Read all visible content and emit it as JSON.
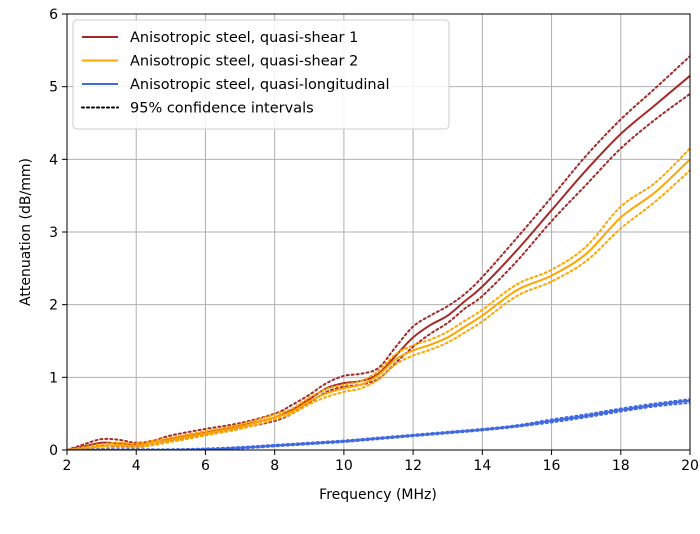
{
  "chart_data": {
    "type": "line",
    "xlabel": "Frequency (MHz)",
    "ylabel": "Attenuation (dB/mm)",
    "xlim": [
      2,
      20
    ],
    "ylim": [
      0,
      6
    ],
    "xticks": [
      "2",
      "4",
      "6",
      "8",
      "10",
      "12",
      "14",
      "16",
      "18",
      "20"
    ],
    "yticks": [
      "0",
      "1",
      "2",
      "3",
      "4",
      "5",
      "6"
    ],
    "grid": true,
    "legend_position": "top-left",
    "legend": [
      {
        "label": "Anisotropic steel, quasi-shear 1",
        "color": "#a52a2a",
        "style": "solid"
      },
      {
        "label": "Anisotropic steel, quasi-shear 2",
        "color": "#ffa500",
        "style": "solid"
      },
      {
        "label": "Anisotropic steel, quasi-longitudinal",
        "color": "#4169e1",
        "style": "solid"
      },
      {
        "label": "95% confidence intervals",
        "color": "#000000",
        "style": "dotted"
      }
    ],
    "series": [
      {
        "name": "Anisotropic steel, quasi-shear 1",
        "color": "#a52a2a",
        "x": [
          2,
          2.5,
          3,
          3.5,
          4,
          4.5,
          5,
          6,
          7,
          8,
          8.5,
          9,
          9.5,
          10,
          10.5,
          11,
          11.5,
          12,
          12.5,
          13,
          13.5,
          14,
          15,
          16,
          17,
          18,
          19,
          20
        ],
        "y": [
          0,
          0.05,
          0.1,
          0.09,
          0.07,
          0.1,
          0.15,
          0.24,
          0.33,
          0.45,
          0.55,
          0.7,
          0.85,
          0.92,
          0.95,
          1.05,
          1.3,
          1.55,
          1.72,
          1.85,
          2.05,
          2.25,
          2.75,
          3.3,
          3.85,
          4.35,
          4.75,
          5.15
        ],
        "ci_lower": [
          0,
          0.02,
          0.06,
          0.05,
          0.04,
          0.07,
          0.12,
          0.21,
          0.3,
          0.4,
          0.5,
          0.65,
          0.8,
          0.87,
          0.9,
          0.98,
          1.2,
          1.42,
          1.6,
          1.75,
          1.95,
          2.12,
          2.6,
          3.15,
          3.65,
          4.15,
          4.55,
          4.9
        ],
        "ci_upper": [
          0,
          0.08,
          0.15,
          0.14,
          0.1,
          0.13,
          0.2,
          0.29,
          0.37,
          0.5,
          0.62,
          0.76,
          0.92,
          1.02,
          1.05,
          1.13,
          1.42,
          1.7,
          1.85,
          1.98,
          2.15,
          2.38,
          2.92,
          3.48,
          4.05,
          4.55,
          4.98,
          5.42
        ]
      },
      {
        "name": "Anisotropic steel, quasi-shear 2",
        "color": "#ffa500",
        "x": [
          2,
          2.5,
          3,
          3.5,
          4,
          4.5,
          5,
          6,
          7,
          8,
          8.5,
          9,
          9.5,
          10,
          10.5,
          11,
          11.5,
          12,
          12.5,
          13,
          13.5,
          14,
          15,
          16,
          17,
          18,
          19,
          20
        ],
        "y": [
          0,
          0.02,
          0.05,
          0.07,
          0.06,
          0.1,
          0.14,
          0.23,
          0.32,
          0.45,
          0.53,
          0.67,
          0.78,
          0.85,
          0.9,
          1.03,
          1.25,
          1.37,
          1.45,
          1.55,
          1.7,
          1.85,
          2.2,
          2.4,
          2.7,
          3.2,
          3.55,
          4.0
        ],
        "ci_lower": [
          0,
          0,
          0.02,
          0.04,
          0.03,
          0.07,
          0.11,
          0.2,
          0.29,
          0.42,
          0.5,
          0.63,
          0.73,
          0.8,
          0.85,
          0.97,
          1.18,
          1.3,
          1.38,
          1.48,
          1.62,
          1.77,
          2.12,
          2.32,
          2.6,
          3.05,
          3.42,
          3.85
        ],
        "ci_upper": [
          0,
          0.04,
          0.08,
          0.1,
          0.09,
          0.13,
          0.17,
          0.26,
          0.35,
          0.49,
          0.57,
          0.72,
          0.84,
          0.9,
          0.95,
          1.09,
          1.32,
          1.44,
          1.52,
          1.63,
          1.78,
          1.93,
          2.28,
          2.48,
          2.8,
          3.35,
          3.68,
          4.15
        ]
      },
      {
        "name": "Anisotropic steel, quasi-longitudinal",
        "color": "#4169e1",
        "x": [
          2,
          3,
          4,
          5,
          6,
          7,
          8,
          9,
          10,
          11,
          12,
          13,
          14,
          15,
          16,
          17,
          18,
          19,
          20
        ],
        "y": [
          0,
          0,
          0,
          0,
          0.01,
          0.03,
          0.06,
          0.09,
          0.12,
          0.16,
          0.2,
          0.24,
          0.28,
          0.33,
          0.4,
          0.47,
          0.55,
          0.62,
          0.68
        ],
        "ci_lower": [
          0,
          0,
          0,
          0,
          0,
          0.02,
          0.05,
          0.08,
          0.11,
          0.15,
          0.19,
          0.23,
          0.27,
          0.32,
          0.38,
          0.45,
          0.53,
          0.6,
          0.65
        ],
        "ci_upper": [
          0,
          0.01,
          0.01,
          0.01,
          0.02,
          0.04,
          0.07,
          0.1,
          0.13,
          0.17,
          0.21,
          0.25,
          0.29,
          0.34,
          0.42,
          0.49,
          0.57,
          0.64,
          0.7
        ]
      }
    ]
  }
}
